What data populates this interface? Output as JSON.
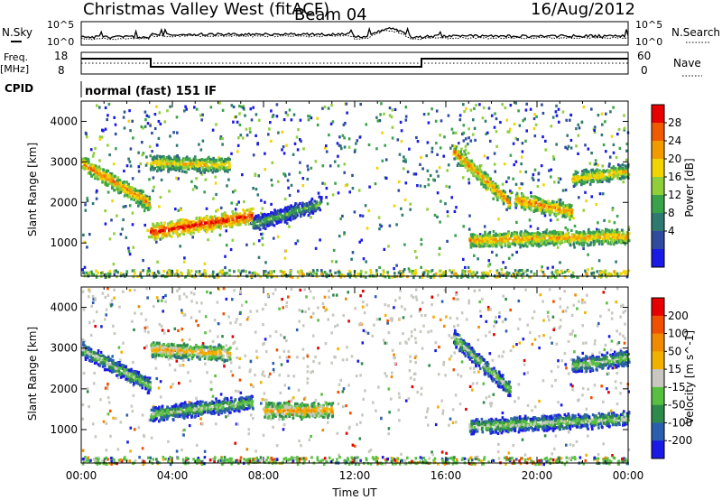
{
  "header": {
    "station": "Christmas Valley West (fitACF)",
    "beam": "Beam 04",
    "date": "16/Aug/2012"
  },
  "noise_panel": {
    "left_label": "N.Sky",
    "right_label": "N.Search",
    "ticks_left": [
      "10^5",
      "10^0"
    ],
    "ticks_right": [
      "10^5",
      "10^0"
    ]
  },
  "freq_panel": {
    "left_label_1": "Freq.",
    "left_label_2": "[MHz]",
    "right_label": "Nave",
    "ticks_left": [
      "18",
      "8"
    ],
    "ticks_right": [
      "60",
      "0"
    ]
  },
  "cpid": {
    "label": "CPID",
    "mode": "normal (fast) 151 IF"
  },
  "chart_data": [
    {
      "type": "heatmap",
      "parameter": "Power",
      "ylabel": "Slant Range [km]",
      "xlabel": "",
      "yticks": [
        1000,
        2000,
        3000,
        4000
      ],
      "ylim": [
        180,
        4500
      ],
      "xlim": [
        0,
        24
      ],
      "colorbar_label": "Power [dB]",
      "colorbar_ticks": [
        "28",
        "24",
        "20",
        "16",
        "12",
        "8",
        "4"
      ],
      "colors": [
        "#1a1ae6",
        "#2e4ba0",
        "#2e7a6e",
        "#3aa34a",
        "#8fcf3a",
        "#f2d400",
        "#f29b00",
        "#f05a00",
        "#e60000"
      ],
      "structures": [
        {
          "t0": 0.0,
          "t1": 3.0,
          "r0": 3000,
          "r1": 2000,
          "level": 0.8
        },
        {
          "t0": 3.0,
          "t1": 6.5,
          "r0": 3000,
          "r1": 2950,
          "level": 0.7
        },
        {
          "t0": 3.0,
          "t1": 7.5,
          "r0": 1300,
          "r1": 1700,
          "level": 0.95
        },
        {
          "t0": 7.5,
          "t1": 10.5,
          "r0": 1500,
          "r1": 2000,
          "level": 0.45
        },
        {
          "t0": 16.3,
          "t1": 18.8,
          "r0": 3300,
          "r1": 2000,
          "level": 0.8
        },
        {
          "t0": 17.0,
          "t1": 24.0,
          "r0": 1100,
          "r1": 1200,
          "level": 0.75
        },
        {
          "t0": 19.0,
          "t1": 21.5,
          "r0": 2100,
          "r1": 1800,
          "level": 0.8
        },
        {
          "t0": 21.5,
          "t1": 24.0,
          "r0": 2600,
          "r1": 2800,
          "level": 0.7
        }
      ]
    },
    {
      "type": "heatmap",
      "parameter": "Velocity",
      "ylabel": "Slant Range [km]",
      "xlabel": "Time UT",
      "yticks": [
        1000,
        2000,
        3000,
        4000
      ],
      "ylim": [
        180,
        4500
      ],
      "xlim": [
        0,
        24
      ],
      "xtick_labels": [
        "00:00",
        "04:00",
        "08:00",
        "12:00",
        "16:00",
        "20:00",
        "00:00"
      ],
      "colorbar_label": "Velocity [m s^-1]",
      "colorbar_ticks": [
        "200",
        "100",
        "50",
        "15",
        "-15",
        "-50",
        "-100",
        "-200"
      ],
      "colors": [
        "#1a1ae6",
        "#2a5fb0",
        "#2e8a4a",
        "#58c040",
        "#c8c8c0",
        "#f2b000",
        "#f08a00",
        "#f05000",
        "#e60000"
      ],
      "structures": [
        {
          "t0": 0.0,
          "t1": 3.0,
          "r0": 3000,
          "r1": 2100,
          "level": 0.5
        },
        {
          "t0": 3.0,
          "t1": 6.5,
          "r0": 3000,
          "r1": 2900,
          "level": 0.68
        },
        {
          "t0": 3.0,
          "t1": 7.5,
          "r0": 1400,
          "r1": 1700,
          "level": 0.5
        },
        {
          "t0": 8.0,
          "t1": 11.0,
          "r0": 1500,
          "r1": 1500,
          "level": 0.72
        },
        {
          "t0": 16.3,
          "t1": 18.8,
          "r0": 3300,
          "r1": 2000,
          "level": 0.5
        },
        {
          "t0": 17.0,
          "t1": 24.0,
          "r0": 1100,
          "r1": 1300,
          "level": 0.5
        },
        {
          "t0": 21.5,
          "t1": 24.0,
          "r0": 2600,
          "r1": 2800,
          "level": 0.5
        }
      ]
    }
  ],
  "colors": {
    "frame": "#000000",
    "background": "#ffffff"
  }
}
